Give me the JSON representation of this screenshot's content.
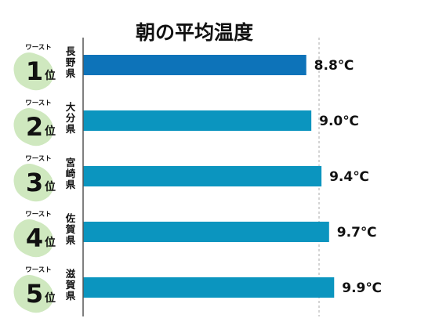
{
  "chart_data": {
    "type": "bar",
    "orientation": "horizontal",
    "title": "朝の平均温度",
    "xlabel": "",
    "ylabel": "",
    "xlim": [
      0,
      10
    ],
    "grid": false,
    "legend": "none",
    "rank_prefix": "ワースト",
    "rank_suffix": "位",
    "value_unit": "℃",
    "categories": [
      "長野県",
      "大分県",
      "宮崎県",
      "佐賀県",
      "滋賀県"
    ],
    "ranks": [
      "1",
      "2",
      "3",
      "4",
      "5"
    ],
    "values": [
      8.8,
      9.0,
      9.4,
      9.7,
      9.9
    ],
    "value_labels": [
      "8.8℃",
      "9.0℃",
      "9.4℃",
      "9.7℃",
      "9.9℃"
    ],
    "bar_colors": [
      "#0d73b9",
      "#0b95bf",
      "#0b95bf",
      "#0b95bf",
      "#0b95bf"
    ]
  },
  "colors": {
    "axis": "#555555",
    "reference_line": "#aaaaaa",
    "map_silhouette": "#cfe8bf"
  }
}
